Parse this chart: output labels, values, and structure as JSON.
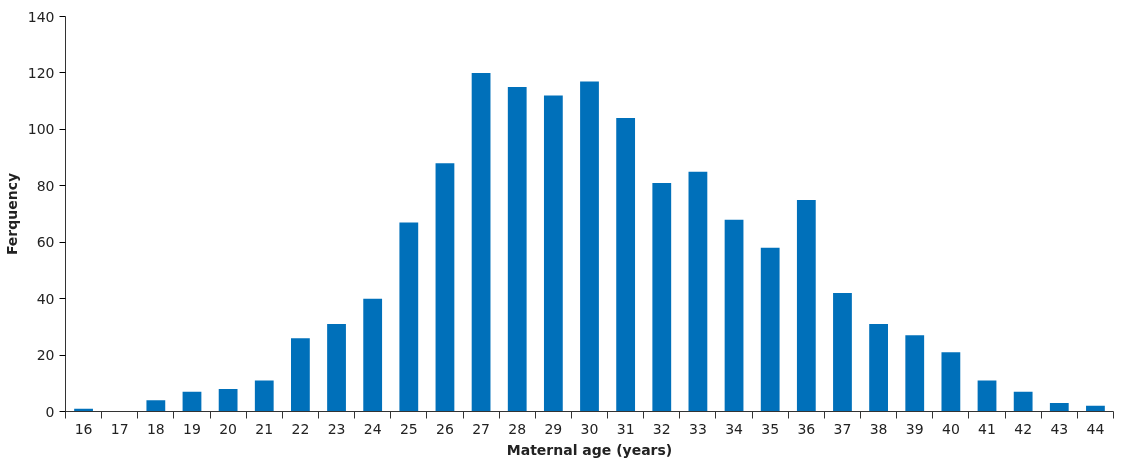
{
  "chart_data": {
    "type": "bar",
    "xlabel": "Maternal age (years)",
    "ylabel": "Ferquency",
    "categories": [
      "16",
      "17",
      "18",
      "19",
      "20",
      "21",
      "22",
      "23",
      "24",
      "25",
      "26",
      "27",
      "28",
      "29",
      "30",
      "31",
      "32",
      "33",
      "34",
      "35",
      "36",
      "37",
      "38",
      "39",
      "40",
      "41",
      "42",
      "43",
      "44"
    ],
    "values": [
      1,
      0,
      4,
      7,
      8,
      11,
      26,
      31,
      40,
      67,
      88,
      120,
      115,
      112,
      117,
      104,
      81,
      85,
      68,
      58,
      75,
      42,
      31,
      27,
      21,
      11,
      7,
      3,
      2
    ],
    "color": "#0070ba",
    "ylim": [
      0,
      140
    ],
    "yticks": [
      0,
      20,
      40,
      60,
      80,
      100,
      120,
      140
    ],
    "grid": false
  }
}
